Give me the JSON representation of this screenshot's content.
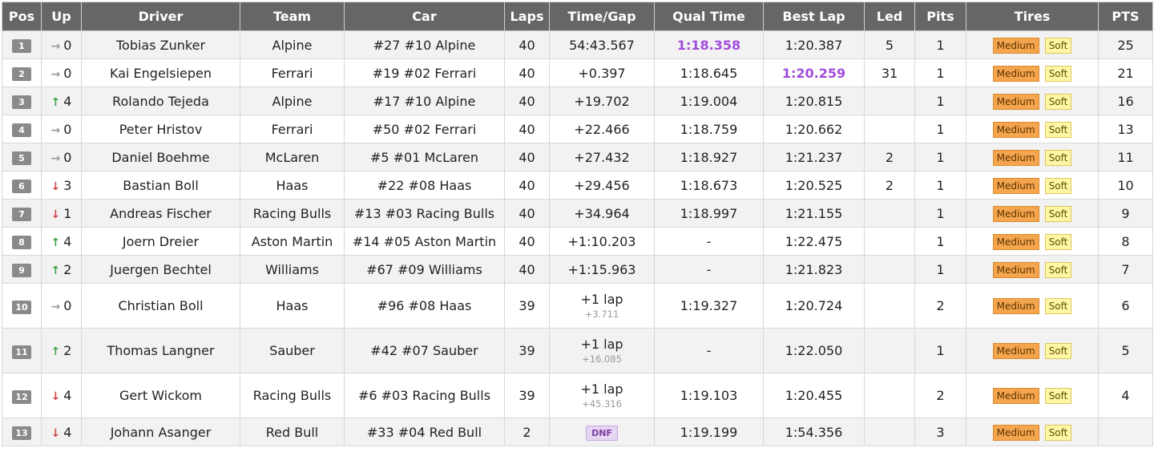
{
  "headers": [
    "Pos",
    "Up",
    "Driver",
    "Team",
    "Car",
    "Laps",
    "Time/Gap",
    "Qual Time",
    "Best Lap",
    "Led",
    "Pits",
    "Tires",
    "PTS"
  ],
  "colors": {
    "header_bg": "#666666",
    "fastest": "#a24bdd",
    "medium_tire": "#f5a54d",
    "soft_tire": "#fff7a6",
    "up": "#3fa34d",
    "down": "#d0474b",
    "flat": "#9a9a9a"
  },
  "rows": [
    {
      "pos": "1",
      "dir": "flat",
      "change": "0",
      "driver": "Tobias Zunker",
      "team": "Alpine",
      "car": "#27 #10 Alpine",
      "laps": "40",
      "gap": "54:43.567",
      "gap_sub": "",
      "qual": "1:18.358",
      "qual_fastest": true,
      "best": "1:20.387",
      "best_fastest": false,
      "led": "5",
      "pits": "1",
      "tires": [
        "Medium",
        "Soft"
      ],
      "pts": "25"
    },
    {
      "pos": "2",
      "dir": "flat",
      "change": "0",
      "driver": "Kai Engelsiepen",
      "team": "Ferrari",
      "car": "#19 #02 Ferrari",
      "laps": "40",
      "gap": "+0.397",
      "gap_sub": "",
      "qual": "1:18.645",
      "qual_fastest": false,
      "best": "1:20.259",
      "best_fastest": true,
      "led": "31",
      "pits": "1",
      "tires": [
        "Medium",
        "Soft"
      ],
      "pts": "21"
    },
    {
      "pos": "3",
      "dir": "up",
      "change": "4",
      "driver": "Rolando Tejeda",
      "team": "Alpine",
      "car": "#17 #10 Alpine",
      "laps": "40",
      "gap": "+19.702",
      "gap_sub": "",
      "qual": "1:19.004",
      "qual_fastest": false,
      "best": "1:20.815",
      "best_fastest": false,
      "led": "",
      "pits": "1",
      "tires": [
        "Medium",
        "Soft"
      ],
      "pts": "16"
    },
    {
      "pos": "4",
      "dir": "flat",
      "change": "0",
      "driver": "Peter Hristov",
      "team": "Ferrari",
      "car": "#50 #02 Ferrari",
      "laps": "40",
      "gap": "+22.466",
      "gap_sub": "",
      "qual": "1:18.759",
      "qual_fastest": false,
      "best": "1:20.662",
      "best_fastest": false,
      "led": "",
      "pits": "1",
      "tires": [
        "Medium",
        "Soft"
      ],
      "pts": "13"
    },
    {
      "pos": "5",
      "dir": "flat",
      "change": "0",
      "driver": "Daniel Boehme",
      "team": "McLaren",
      "car": "#5 #01 McLaren",
      "laps": "40",
      "gap": "+27.432",
      "gap_sub": "",
      "qual": "1:18.927",
      "qual_fastest": false,
      "best": "1:21.237",
      "best_fastest": false,
      "led": "2",
      "pits": "1",
      "tires": [
        "Medium",
        "Soft"
      ],
      "pts": "11"
    },
    {
      "pos": "6",
      "dir": "down",
      "change": "3",
      "driver": "Bastian Boll",
      "team": "Haas",
      "car": "#22 #08 Haas",
      "laps": "40",
      "gap": "+29.456",
      "gap_sub": "",
      "qual": "1:18.673",
      "qual_fastest": false,
      "best": "1:20.525",
      "best_fastest": false,
      "led": "2",
      "pits": "1",
      "tires": [
        "Medium",
        "Soft"
      ],
      "pts": "10"
    },
    {
      "pos": "7",
      "dir": "down",
      "change": "1",
      "driver": "Andreas Fischer",
      "team": "Racing Bulls",
      "car": "#13 #03 Racing Bulls",
      "laps": "40",
      "gap": "+34.964",
      "gap_sub": "",
      "qual": "1:18.997",
      "qual_fastest": false,
      "best": "1:21.155",
      "best_fastest": false,
      "led": "",
      "pits": "1",
      "tires": [
        "Medium",
        "Soft"
      ],
      "pts": "9"
    },
    {
      "pos": "8",
      "dir": "up",
      "change": "4",
      "driver": "Joern Dreier",
      "team": "Aston Martin",
      "car": "#14 #05 Aston Martin",
      "laps": "40",
      "gap": "+1:10.203",
      "gap_sub": "",
      "qual": "-",
      "qual_fastest": false,
      "best": "1:22.475",
      "best_fastest": false,
      "led": "",
      "pits": "1",
      "tires": [
        "Medium",
        "Soft"
      ],
      "pts": "8"
    },
    {
      "pos": "9",
      "dir": "up",
      "change": "2",
      "driver": "Juergen Bechtel",
      "team": "Williams",
      "car": "#67 #09 Williams",
      "laps": "40",
      "gap": "+1:15.963",
      "gap_sub": "",
      "qual": "-",
      "qual_fastest": false,
      "best": "1:21.823",
      "best_fastest": false,
      "led": "",
      "pits": "1",
      "tires": [
        "Medium",
        "Soft"
      ],
      "pts": "7"
    },
    {
      "pos": "10",
      "dir": "flat",
      "change": "0",
      "driver": "Christian Boll",
      "team": "Haas",
      "car": "#96 #08 Haas",
      "laps": "39",
      "gap": "+1 lap",
      "gap_sub": "+3.711",
      "qual": "1:19.327",
      "qual_fastest": false,
      "best": "1:20.724",
      "best_fastest": false,
      "led": "",
      "pits": "2",
      "tires": [
        "Medium",
        "Soft"
      ],
      "pts": "6"
    },
    {
      "pos": "11",
      "dir": "up",
      "change": "2",
      "driver": "Thomas Langner",
      "team": "Sauber",
      "car": "#42 #07 Sauber",
      "laps": "39",
      "gap": "+1 lap",
      "gap_sub": "+16.085",
      "qual": "-",
      "qual_fastest": false,
      "best": "1:22.050",
      "best_fastest": false,
      "led": "",
      "pits": "1",
      "tires": [
        "Medium",
        "Soft"
      ],
      "pts": "5"
    },
    {
      "pos": "12",
      "dir": "down",
      "change": "4",
      "driver": "Gert Wickom",
      "team": "Racing Bulls",
      "car": "#6 #03 Racing Bulls",
      "laps": "39",
      "gap": "+1 lap",
      "gap_sub": "+45.316",
      "qual": "1:19.103",
      "qual_fastest": false,
      "best": "1:20.455",
      "best_fastest": false,
      "led": "",
      "pits": "2",
      "tires": [
        "Medium",
        "Soft"
      ],
      "pts": "4"
    },
    {
      "pos": "13",
      "dir": "down",
      "change": "4",
      "driver": "Johann Asanger",
      "team": "Red Bull",
      "car": "#33 #04 Red Bull",
      "laps": "2",
      "gap": "",
      "gap_sub": "",
      "status_badge": "DNF",
      "qual": "1:19.199",
      "qual_fastest": false,
      "best": "1:54.356",
      "best_fastest": false,
      "led": "",
      "pits": "3",
      "tires": [
        "Medium",
        "Soft"
      ],
      "pts": ""
    }
  ]
}
